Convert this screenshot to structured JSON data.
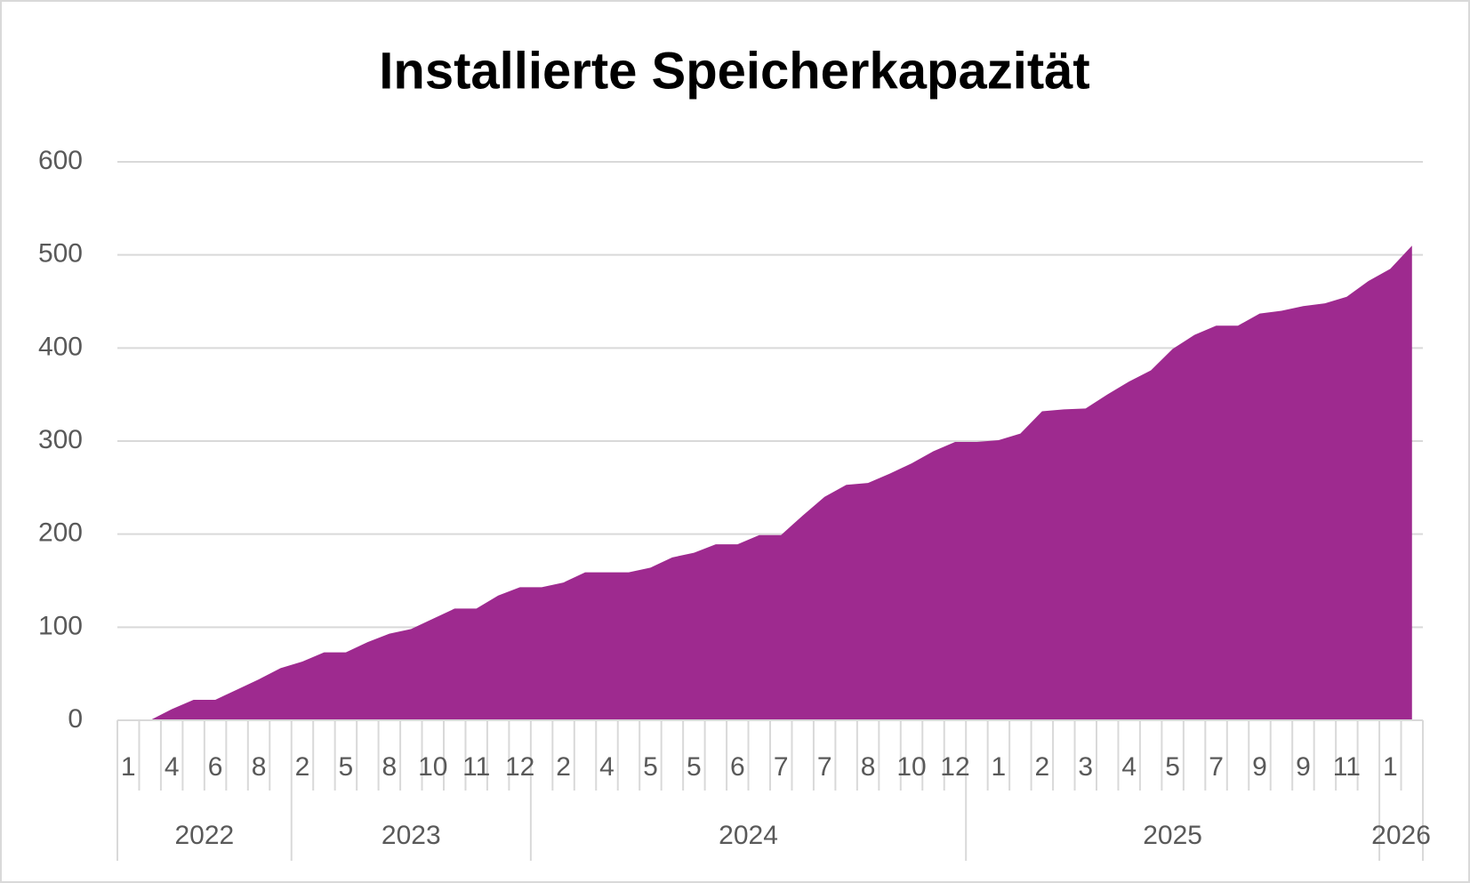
{
  "chart_data": {
    "type": "area",
    "title": "Installierte Speicherkapazität",
    "categories": [
      "1",
      null,
      "4",
      null,
      "6",
      null,
      "8",
      null,
      "2",
      null,
      "5",
      null,
      "8",
      null,
      "10",
      null,
      "11",
      null,
      "12",
      null,
      "2",
      null,
      "4",
      null,
      "5",
      null,
      "5",
      null,
      "6",
      null,
      "7",
      null,
      "7",
      null,
      "8",
      null,
      "10",
      null,
      "12",
      null,
      "1",
      null,
      "2",
      null,
      "3",
      null,
      "4",
      null,
      "5",
      null,
      "7",
      null,
      "9",
      null,
      "9",
      null,
      "11",
      null,
      "1",
      null
    ],
    "year_categories": [
      "2022",
      null,
      null,
      null,
      null,
      null,
      null,
      null,
      "2023",
      null,
      null,
      null,
      null,
      null,
      null,
      null,
      null,
      null,
      null,
      "2024",
      null,
      null,
      null,
      null,
      null,
      null,
      null,
      null,
      null,
      null,
      null,
      null,
      null,
      null,
      null,
      null,
      null,
      null,
      null,
      "2025",
      null,
      null,
      null,
      null,
      null,
      null,
      null,
      null,
      null,
      null,
      null,
      null,
      null,
      null,
      null,
      null,
      null,
      null,
      "2026",
      null
    ],
    "values": [
      0,
      0,
      12,
      22,
      22,
      33,
      44,
      56,
      63,
      73,
      73,
      84,
      93,
      98,
      109,
      120,
      120,
      134,
      143,
      143,
      148,
      159,
      159,
      159,
      164,
      175,
      180,
      189,
      189,
      199,
      199,
      220,
      240,
      253,
      255,
      265,
      276,
      289,
      299,
      299,
      301,
      308,
      332,
      334,
      335,
      350,
      364,
      376,
      399,
      414,
      424,
      424,
      437,
      440,
      445,
      448,
      455,
      472,
      485,
      510
    ],
    "color": "#9e2a8f",
    "ylim": [
      0,
      600
    ],
    "yticks": [
      0,
      100,
      200,
      300,
      400,
      500,
      600
    ],
    "grid": true
  }
}
